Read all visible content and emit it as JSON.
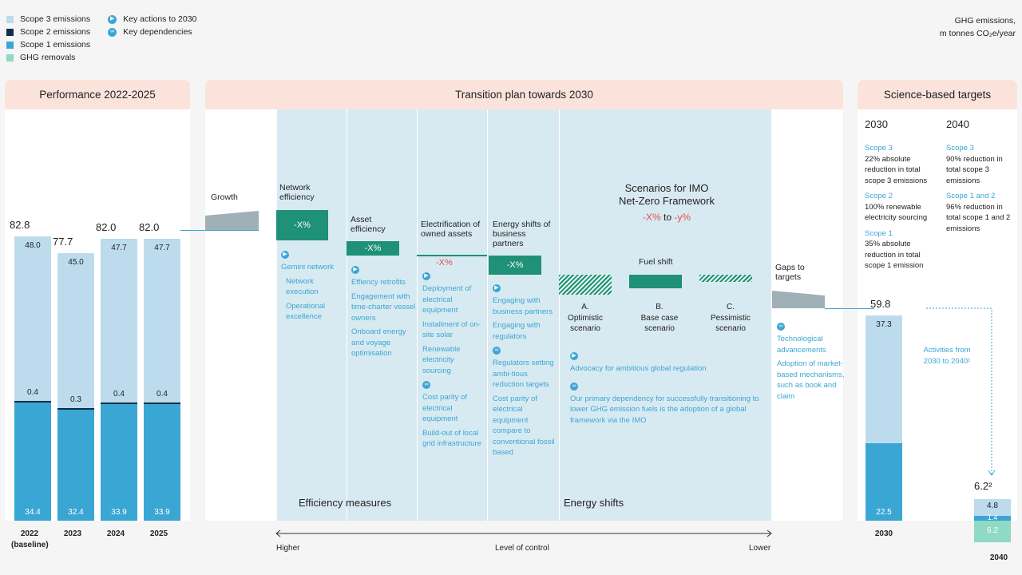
{
  "legend": {
    "scope3": "Scope 3 emissions",
    "scope2": "Scope 2 emissions",
    "scope1": "Scope 1 emissions",
    "removals": "GHG removals",
    "actions": "Key actions to 2030",
    "dependencies": "Key dependencies"
  },
  "unit_line1": "GHG emissions,",
  "unit_line2": "m tonnes CO₂e/year",
  "colors": {
    "scope3": "#bcdcee",
    "scope2": "#0d2f48",
    "scope1": "#3aa6d4",
    "removals": "#8fd9c5",
    "efficiency": "#1e9176",
    "header": "#fbe3dc"
  },
  "panels": {
    "performance": "Performance 2022-2025",
    "transition": "Transition plan towards 2030",
    "targets": "Science-based targets"
  },
  "chart_data": {
    "type": "bar",
    "categories": [
      "2022\n(baseline)",
      "2023",
      "2024",
      "2025"
    ],
    "category_labels": [
      [
        "2022",
        "(baseline)"
      ],
      [
        "2023",
        ""
      ],
      [
        "2024",
        ""
      ],
      [
        "2025",
        ""
      ]
    ],
    "series": [
      {
        "name": "Scope 1 emissions",
        "values": [
          34.4,
          32.4,
          33.9,
          33.9
        ]
      },
      {
        "name": "Scope 2 emissions",
        "values": [
          0.4,
          0.3,
          0.4,
          0.4
        ]
      },
      {
        "name": "Scope 3 emissions",
        "values": [
          48.0,
          45.0,
          47.7,
          47.7
        ]
      }
    ],
    "totals": [
      "82.8",
      "77.7",
      "82.0",
      "82.0"
    ],
    "target_2030": {
      "label": "2030",
      "total": "59.8",
      "scope1": 22.5,
      "scope3": 37.3
    },
    "target_2040": {
      "label": "2040",
      "total": "6.2²",
      "scope3": 4.8,
      "scope12": 1.4,
      "removals": 6.2
    },
    "ylim": [
      0,
      90
    ]
  },
  "transition": {
    "growth": "Growth",
    "steps": [
      {
        "title": "Network efficiency",
        "value": "-X%",
        "bullets": [
          "Gemini network",
          "Network execution",
          "Operational excellence"
        ]
      },
      {
        "title": "Asset efficiency",
        "value": "-X%",
        "bullets": [
          "Effiency retrofits",
          "Engagement with time-charter vessel owners",
          "Onboard energy and voyage optimisation"
        ]
      },
      {
        "title": "Electrification of owned assets",
        "value": "-X%",
        "bullets": [
          "Deployment of electrical equipment",
          "Installment of on-site solar",
          "Renewable electricity sourcing"
        ],
        "deps": [
          "Cost parity of electrical equipment",
          "Build-out of local grid infrastructure"
        ]
      },
      {
        "title": "Energy shifts of business partners",
        "value": "-X%",
        "bullets": [
          "Engaging with business partners",
          "Engaging with regulators"
        ],
        "deps": [
          "Regulators setting ambi-tious reduction targets",
          "Cost parity of electrical equipment compare to conventional fossil based"
        ]
      }
    ],
    "imo_title_1": "Scenarios for IMO",
    "imo_title_2": "Net-Zero Framework",
    "imo_range_a": "-X%",
    "imo_range_mid": " to ",
    "imo_range_b": "-y%",
    "fuel_shift": "Fuel shift",
    "scenarios": [
      {
        "letter": "A.",
        "name1": "Optimistic",
        "name2": "scenario"
      },
      {
        "letter": "B.",
        "name1": "Base case",
        "name2": "scenario"
      },
      {
        "letter": "C.",
        "name1": "Pessimistic",
        "name2": "scenario"
      }
    ],
    "advocacy": "Advocacy for ambitious global regulation",
    "dependency": "Our primary dependency for successfully transitioning to lower GHG emission fuels is the adoption of a global framework via the IMO",
    "gaps": "Gaps to targets",
    "gaps_deps": [
      "Technological advancements",
      "Adoption of market-based mechanisms, such as book and claim"
    ],
    "efficiency_measures": "Efficiency measures",
    "energy_shifts": "Energy shifts",
    "axis_left": "Higher",
    "axis_mid": "Level of control",
    "axis_right": "Lower"
  },
  "targets": {
    "y2030": "2030",
    "y2040": "2040",
    "col2030": [
      {
        "head": "Scope 3",
        "text": "22% absolute reduction in total scope 3 emissions"
      },
      {
        "head": "Scope 2",
        "text": "100% renewable electricity sourcing"
      },
      {
        "head": "Scope 1",
        "text": "35% absolute reduction in total scope 1 emission"
      }
    ],
    "col2040": [
      {
        "head": "Scope 3",
        "text": "90% reduction in total scope 3 emissions"
      },
      {
        "head": "Scope 1 and 2",
        "text": "96% reduction in total scope 1 and 2 emissions"
      }
    ],
    "activities": "Activities from 2030 to 2040¹"
  }
}
